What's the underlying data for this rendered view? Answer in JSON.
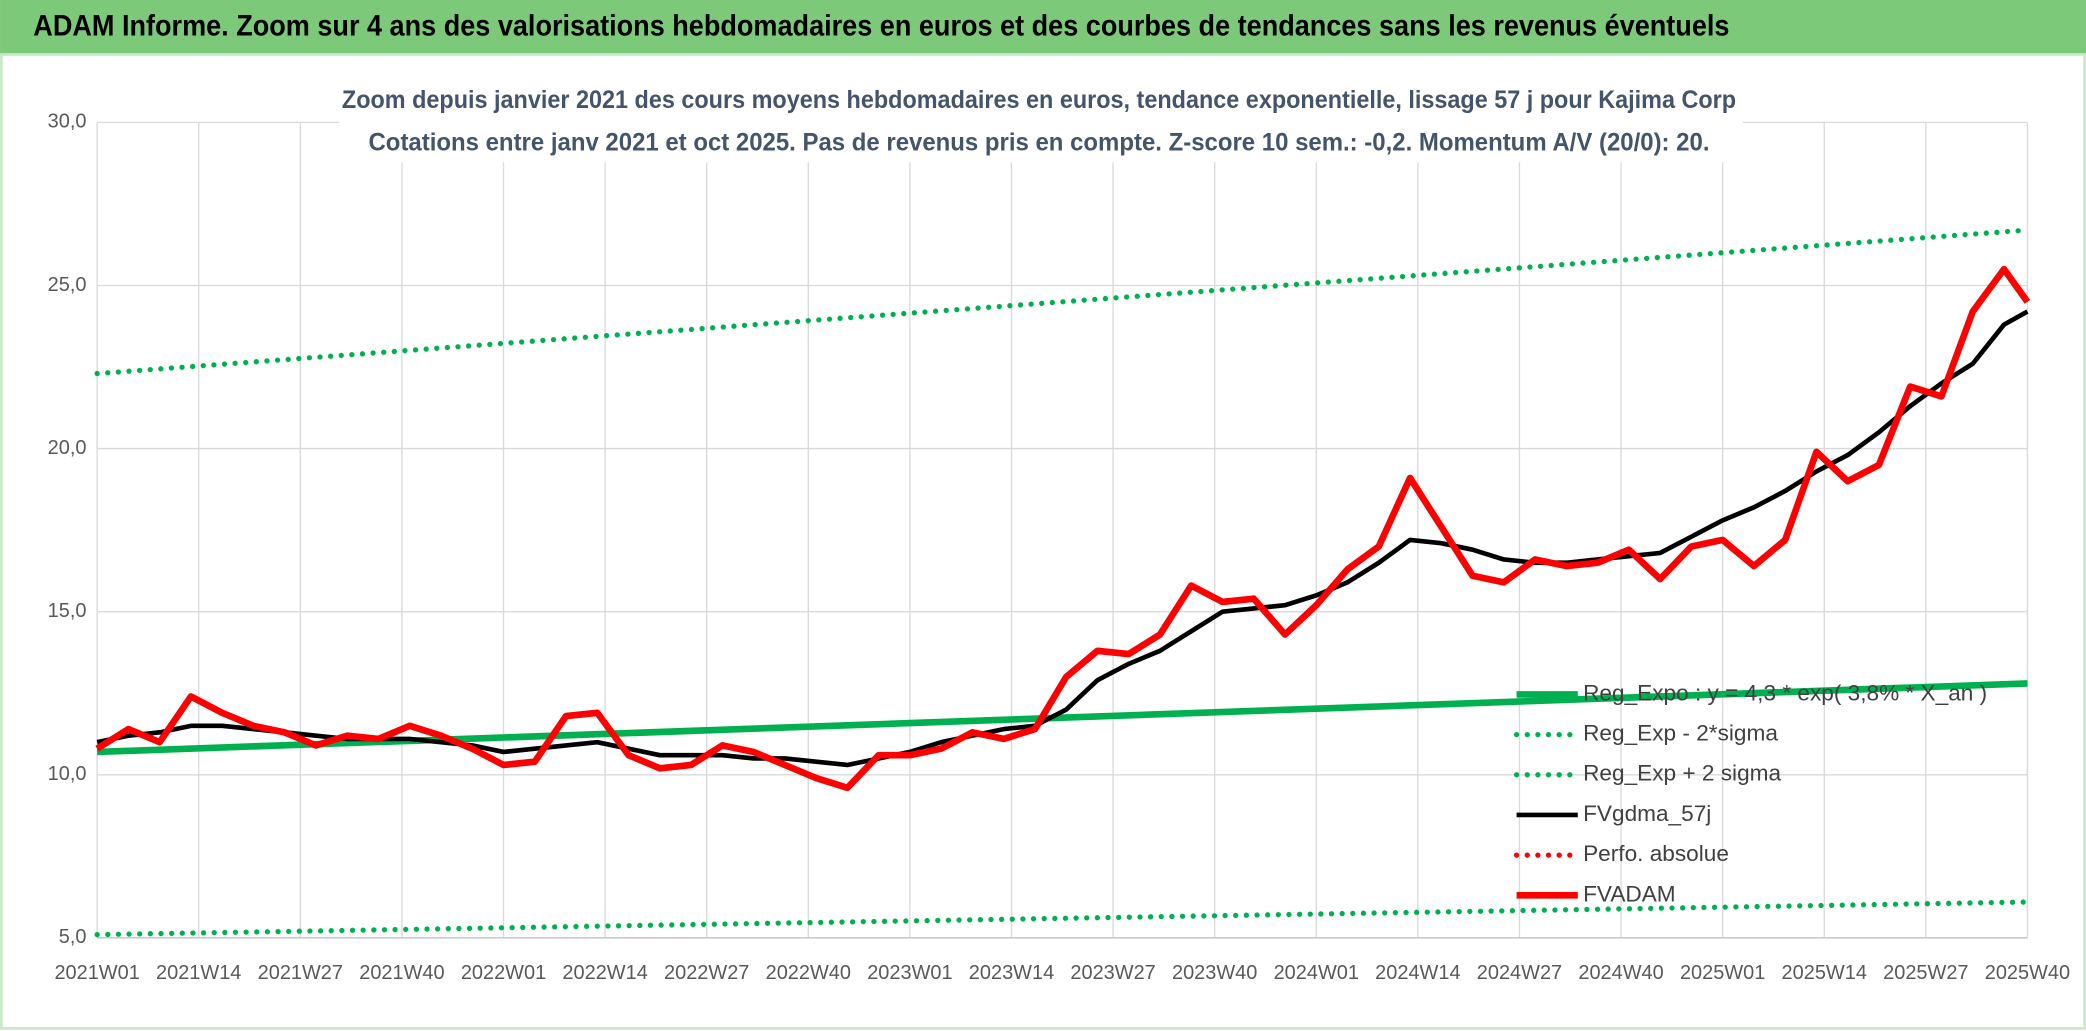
{
  "chart_data": {
    "type": "line",
    "header": "ADAM Informe. Zoom sur 4 ans des valorisations hebdomadaires en euros et des courbes de tendances sans les revenus éventuels",
    "title": "Zoom depuis janvier 2021 des cours moyens hebdomadaires en euros, tendance exponentielle, lissage 57 j pour Kajima Corp",
    "subtitle": "Cotations entre janv 2021 et oct 2025. Pas de revenus pris en compte. Z-score 10 sem.: -0,2. Momentum A/V (20/0): 20.",
    "x": [
      0,
      4,
      8,
      12,
      16,
      20,
      24,
      28,
      32,
      36,
      40,
      44,
      48,
      52,
      56,
      60,
      64,
      68,
      72,
      76,
      80,
      84,
      88,
      92,
      96,
      100,
      104,
      108,
      112,
      116,
      120,
      124,
      128,
      132,
      136,
      140,
      144,
      148,
      152,
      156,
      160,
      164,
      168,
      172,
      176,
      180,
      184,
      188,
      192,
      196,
      200,
      204,
      208,
      212,
      216,
      220,
      224,
      228,
      232,
      236,
      240,
      244,
      247
    ],
    "xlim": [
      0,
      247
    ],
    "xticks": [
      {
        "value": 0,
        "label": "2021W01"
      },
      {
        "value": 13,
        "label": "2021W14"
      },
      {
        "value": 26,
        "label": "2021W27"
      },
      {
        "value": 39,
        "label": "2021W40"
      },
      {
        "value": 52,
        "label": "2022W01"
      },
      {
        "value": 65,
        "label": "2022W14"
      },
      {
        "value": 78,
        "label": "2022W27"
      },
      {
        "value": 91,
        "label": "2022W40"
      },
      {
        "value": 104,
        "label": "2023W01"
      },
      {
        "value": 117,
        "label": "2023W14"
      },
      {
        "value": 130,
        "label": "2023W27"
      },
      {
        "value": 143,
        "label": "2023W40"
      },
      {
        "value": 156,
        "label": "2024W01"
      },
      {
        "value": 169,
        "label": "2024W14"
      },
      {
        "value": 182,
        "label": "2024W27"
      },
      {
        "value": 195,
        "label": "2024W40"
      },
      {
        "value": 208,
        "label": "2025W01"
      },
      {
        "value": 221,
        "label": "2025W14"
      },
      {
        "value": 234,
        "label": "2025W27"
      },
      {
        "value": 247,
        "label": "2025W40"
      }
    ],
    "ylim": [
      5,
      30
    ],
    "yticks": [
      {
        "value": 5,
        "label": "5,0"
      },
      {
        "value": 10,
        "label": "10,0"
      },
      {
        "value": 15,
        "label": "15,0"
      },
      {
        "value": 20,
        "label": "20,0"
      },
      {
        "value": 25,
        "label": "25,0"
      },
      {
        "value": 30,
        "label": "30,0"
      }
    ],
    "grid": true,
    "legend": "right",
    "series": [
      {
        "name": "Reg_Expo : y = 4,3 * exp( 3,8% * X_an )",
        "color": "#00b050",
        "style": "solid",
        "x": [
          0,
          247
        ],
        "values": [
          10.7,
          12.8
        ]
      },
      {
        "name": "Reg_Exp - 2*sigma",
        "color": "#00b050",
        "style": "dotted",
        "x": [
          0,
          247
        ],
        "values": [
          5.1,
          6.1
        ]
      },
      {
        "name": "Reg_Exp + 2 sigma",
        "color": "#00b050",
        "style": "dotted",
        "x": [
          0,
          247
        ],
        "values": [
          22.3,
          26.7
        ]
      },
      {
        "name": "FVgdma_57j",
        "color": "#000000",
        "style": "solid",
        "values": [
          11.0,
          11.2,
          11.3,
          11.5,
          11.5,
          11.4,
          11.3,
          11.2,
          11.1,
          11.1,
          11.1,
          11.0,
          10.9,
          10.7,
          10.8,
          10.9,
          11.0,
          10.8,
          10.6,
          10.6,
          10.6,
          10.5,
          10.5,
          10.4,
          10.3,
          10.5,
          10.7,
          11.0,
          11.2,
          11.4,
          11.5,
          12.0,
          12.9,
          13.4,
          13.8,
          14.4,
          15.0,
          15.1,
          15.2,
          15.5,
          15.9,
          16.5,
          17.2,
          17.1,
          16.9,
          16.6,
          16.5,
          16.5,
          16.6,
          16.7,
          16.8,
          17.3,
          17.8,
          18.2,
          18.7,
          19.3,
          19.8,
          20.5,
          21.3,
          22.0,
          22.6,
          23.8,
          24.2
        ]
      },
      {
        "name": "Perfo. absolue",
        "color": "#ff0000",
        "style": "dotted"
      },
      {
        "name": "FVADAM",
        "color": "#ff0000",
        "style": "solid",
        "values": [
          10.8,
          11.4,
          11.0,
          12.4,
          11.9,
          11.5,
          11.3,
          10.9,
          11.2,
          11.1,
          11.5,
          11.2,
          10.8,
          10.3,
          10.4,
          11.8,
          11.9,
          10.6,
          10.2,
          10.3,
          10.9,
          10.7,
          10.3,
          9.9,
          9.6,
          10.6,
          10.6,
          10.8,
          11.3,
          11.1,
          11.4,
          13.0,
          13.8,
          13.7,
          14.3,
          15.8,
          15.3,
          15.4,
          14.3,
          15.2,
          16.3,
          17.0,
          19.1,
          17.6,
          16.1,
          15.9,
          16.6,
          16.4,
          16.5,
          16.9,
          16.0,
          17.0,
          17.2,
          16.4,
          17.2,
          19.9,
          19.0,
          19.5,
          21.9,
          21.6,
          24.2,
          25.5,
          24.5
        ]
      }
    ]
  }
}
